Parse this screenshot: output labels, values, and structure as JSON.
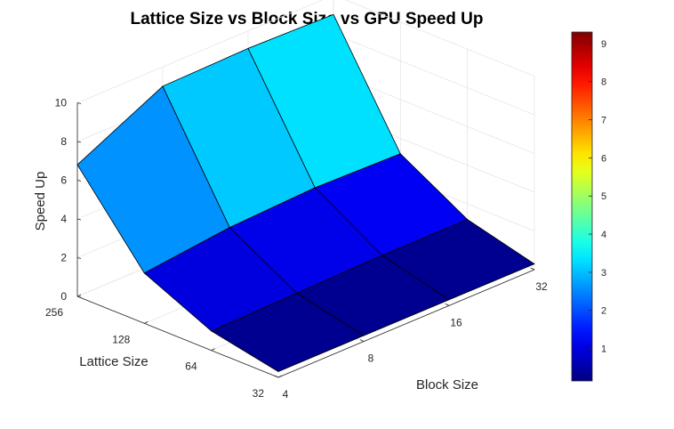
{
  "chart_data": {
    "type": "surface",
    "title": "Lattice Size vs Block Size vs GPU Speed Up",
    "xlabel": "Block Size",
    "ylabel": "Lattice Size",
    "zlabel": "Speed Up",
    "x_ticks": [
      "4",
      "8",
      "16",
      "32"
    ],
    "y_ticks": [
      "32",
      "64",
      "128",
      "256"
    ],
    "z_ticks": [
      "0",
      "2",
      "4",
      "6",
      "8",
      "10"
    ],
    "zlim": [
      0,
      10
    ],
    "x": [
      4,
      8,
      16,
      32
    ],
    "y": [
      32,
      64,
      128,
      256
    ],
    "z": [
      [
        0.3,
        0.3,
        0.3,
        0.3
      ],
      [
        1.0,
        1.1,
        1.2,
        1.2
      ],
      [
        2.6,
        3.1,
        3.3,
        3.2
      ],
      [
        6.8,
        9.0,
        9.1,
        9.0
      ]
    ],
    "colormap": "jet",
    "colorbar_range": [
      0.15,
      9.3
    ],
    "colorbar_ticks": [
      "1",
      "2",
      "3",
      "4",
      "5",
      "6",
      "7",
      "8",
      "9"
    ],
    "grid": true
  }
}
